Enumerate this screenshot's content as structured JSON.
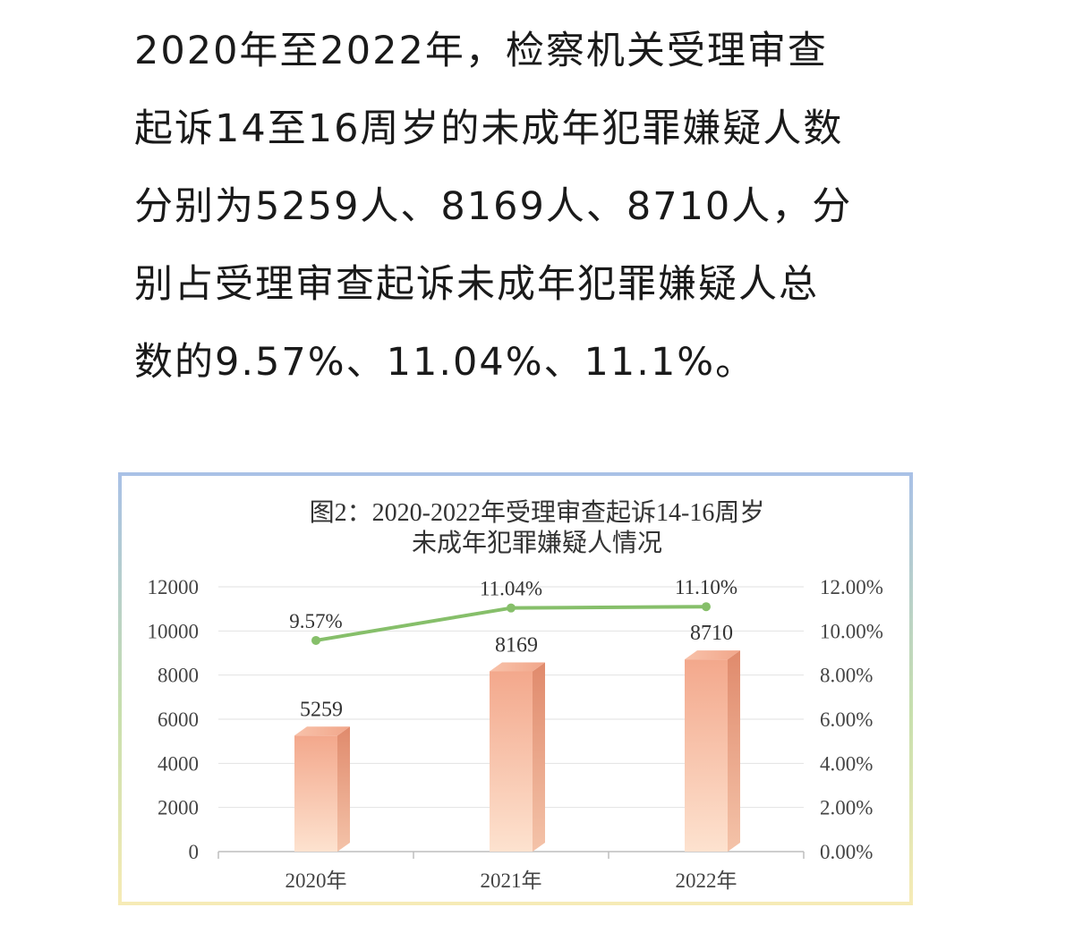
{
  "article": {
    "lines": [
      "2020年至2022年，检察机关受理审查",
      "起诉14至16周岁的未成年犯罪嫌疑人数",
      "分别为5259人、8169人、8710人，分",
      "别占受理审查起诉未成年犯罪嫌疑人总",
      "数的9.57%、11.04%、11.1%。"
    ]
  },
  "chart_data": {
    "type": "bar",
    "title": "图2：2020-2022年受理审查起诉14-16周岁",
    "subtitle": "未成年犯罪嫌疑人情况",
    "categories": [
      "2020年",
      "2021年",
      "2022年"
    ],
    "series": [
      {
        "type": "bar",
        "axis": "left",
        "values": [
          5259,
          8169,
          8710
        ],
        "labels": [
          "5259",
          "8169",
          "8710"
        ]
      },
      {
        "type": "line",
        "axis": "right",
        "values": [
          9.57,
          11.04,
          11.1
        ],
        "labels": [
          "9.57%",
          "11.04%",
          "11.10%"
        ]
      }
    ],
    "ylim": [
      0,
      12000
    ],
    "y_ticks": [
      "0",
      "2000",
      "4000",
      "6000",
      "8000",
      "10000",
      "12000"
    ],
    "y2lim": [
      0,
      12
    ],
    "y2_ticks": [
      "0.00%",
      "2.00%",
      "4.00%",
      "6.00%",
      "8.00%",
      "10.00%",
      "12.00%"
    ],
    "grid": true,
    "colors": {
      "bar": "#f2a990",
      "line": "#86bf6a"
    }
  }
}
